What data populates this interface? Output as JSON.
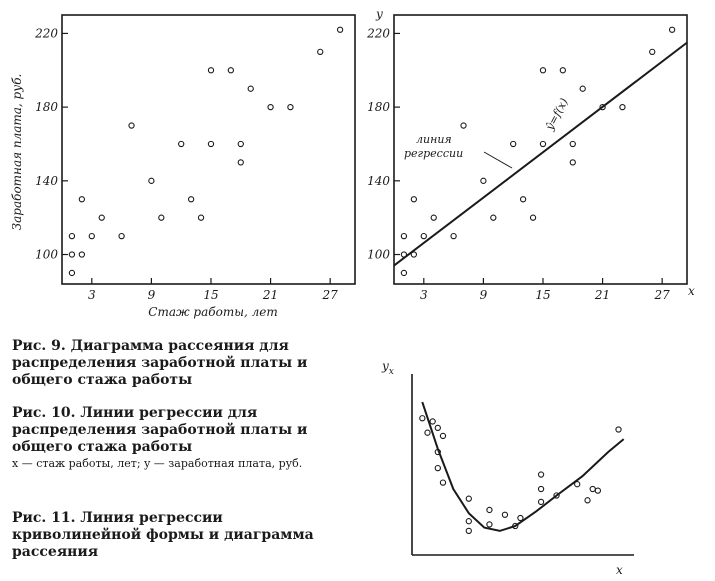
{
  "captions": {
    "fig9": "Рис. 9. Диаграмма рассеяния для распределения заработной платы и общего стажа работы",
    "fig10": "Рис. 10. Линии регрессии для распределения заработной платы и общего стажа работы",
    "fig10_note": "x — стаж работы, лет; y — заработная плата, руб.",
    "fig11": "Рис. 11. Линия регрессии криволинейной формы и диаграмма рассеяния"
  },
  "chart_data": [
    {
      "type": "scatter",
      "xlabel": "Стаж работы, лет",
      "ylabel": "Заработная плата, руб.",
      "xticks": [
        3,
        9,
        15,
        21,
        27
      ],
      "yticks": [
        100,
        140,
        180,
        220
      ],
      "xlim": [
        0,
        29.5
      ],
      "ylim": [
        84,
        230
      ],
      "x": [
        1,
        1,
        1,
        2,
        2,
        3,
        4,
        6,
        7,
        9,
        10,
        12,
        13,
        14,
        15,
        15,
        17,
        18,
        18,
        19,
        21,
        23,
        26,
        28
      ],
      "y": [
        90,
        100,
        110,
        100,
        130,
        110,
        120,
        110,
        170,
        140,
        120,
        160,
        130,
        120,
        200,
        160,
        200,
        150,
        160,
        190,
        180,
        180,
        210,
        222
      ]
    },
    {
      "type": "scatter",
      "xlabel": "x",
      "ylabel": "y",
      "xticks": [
        3,
        9,
        15,
        21,
        27
      ],
      "yticks": [
        100,
        140,
        180,
        220
      ],
      "xlim": [
        0,
        29.5
      ],
      "ylim": [
        84,
        230
      ],
      "x": [
        1,
        1,
        1,
        2,
        2,
        3,
        4,
        6,
        7,
        9,
        10,
        12,
        13,
        14,
        15,
        15,
        17,
        18,
        18,
        19,
        21,
        23,
        26,
        28
      ],
      "y": [
        90,
        100,
        110,
        100,
        130,
        110,
        120,
        110,
        170,
        140,
        120,
        160,
        130,
        120,
        200,
        160,
        200,
        150,
        160,
        190,
        180,
        180,
        210,
        222
      ],
      "regression_line": {
        "x": [
          0,
          29.5
        ],
        "y": [
          94,
          215
        ]
      },
      "annotations": {
        "line_label_1": "линия",
        "line_label_2": "регрессии",
        "equation": "ŷ=f(x)"
      }
    },
    {
      "type": "scatter",
      "xlabel": "x",
      "ylabel": "yx",
      "ylabel_main": "y",
      "ylabel_sub": "x",
      "x": [
        2,
        3,
        4,
        5,
        6,
        5,
        5,
        6,
        11,
        11,
        11,
        15,
        15,
        18,
        20,
        21,
        25,
        25,
        25,
        28,
        32,
        34,
        35,
        36,
        40
      ],
      "y": [
        8.5,
        7.6,
        8.3,
        7.9,
        7.4,
        6.4,
        5.4,
        4.5,
        3.5,
        2.1,
        1.5,
        1.9,
        2.8,
        2.5,
        1.8,
        2.3,
        5.0,
        4.1,
        3.3,
        3.7,
        4.4,
        3.4,
        4.1,
        4.0,
        7.8
      ],
      "curve": {
        "x": [
          2,
          5,
          8,
          11,
          14,
          17,
          20,
          24,
          28,
          33,
          38,
          41
        ],
        "y": [
          9.5,
          6.6,
          4.1,
          2.6,
          1.7,
          1.5,
          1.8,
          2.7,
          3.7,
          4.9,
          6.4,
          7.2
        ]
      },
      "xlim": [
        0,
        43
      ],
      "ylim": [
        0,
        11
      ]
    }
  ]
}
